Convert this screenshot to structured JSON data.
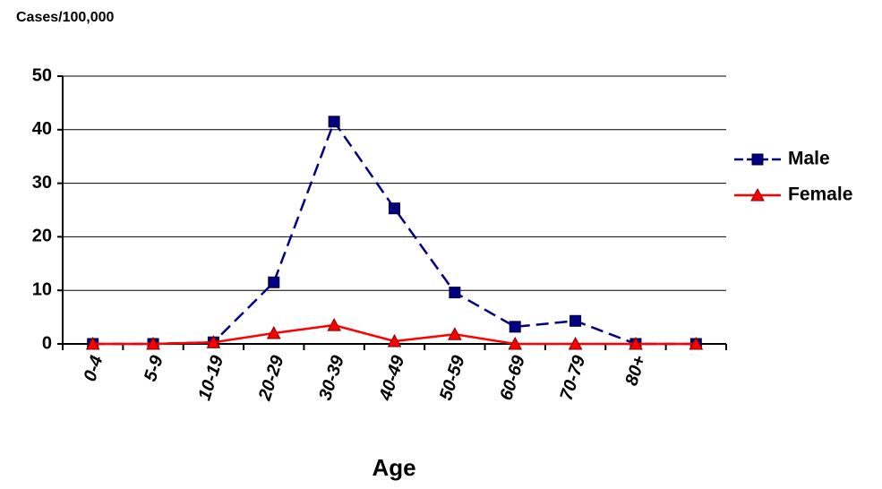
{
  "chart_data": {
    "type": "line",
    "ylabel": "Cases/100,000",
    "xlabel": "Age",
    "categories": [
      "0-4",
      "5-9",
      "10-19",
      "20-29",
      "30-39",
      "40-49",
      "50-59",
      "60-69",
      "70-79",
      "80+",
      null
    ],
    "series": [
      {
        "name": "Male",
        "color": "#000080",
        "values": [
          0,
          0,
          0.3,
          11.5,
          41.5,
          25.3,
          9.6,
          3.2,
          4.3,
          0,
          0
        ]
      },
      {
        "name": "Female",
        "color": "#ff0000",
        "values": [
          0,
          0,
          0.3,
          2,
          3.5,
          0.5,
          1.8,
          0,
          0,
          0,
          0
        ]
      }
    ],
    "ylim": [
      0,
      50
    ],
    "yticks": [
      0,
      10,
      20,
      30,
      40,
      50
    ],
    "grid": true,
    "legend": "right"
  }
}
